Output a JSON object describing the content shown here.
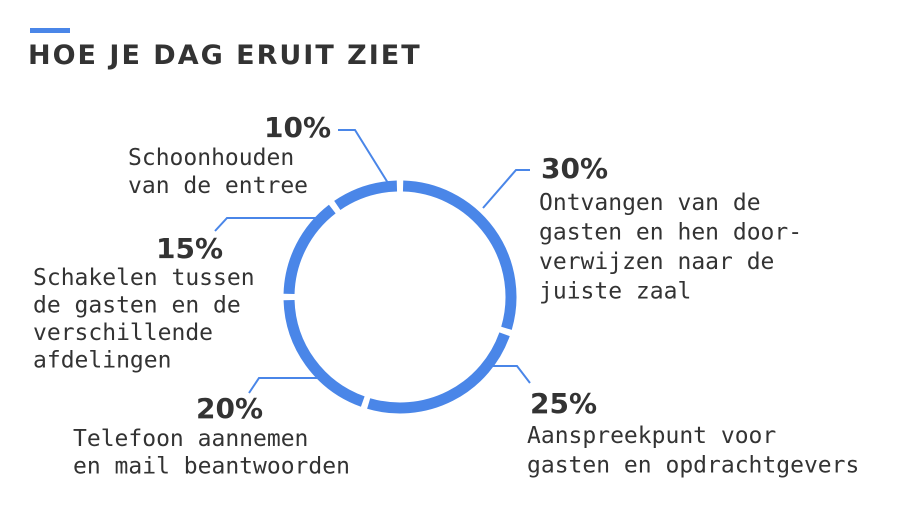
{
  "title": "HOE JE DAG ERUIT ZIET",
  "colors": {
    "accent": "#4a86e8",
    "text": "#333333"
  },
  "chart_data": {
    "type": "pie",
    "style": "donut-ring",
    "slices": [
      {
        "value": 30,
        "label": "30%",
        "description": [
          "Ontvangen van de",
          "gasten en hen door-",
          "verwijzen naar de",
          "juiste zaal"
        ]
      },
      {
        "value": 25,
        "label": "25%",
        "description": [
          "Aanspreekpunt voor",
          "gasten en opdrachtgevers"
        ]
      },
      {
        "value": 20,
        "label": "20%",
        "description": [
          "Telefoon aannemen",
          "en mail beantwoorden"
        ]
      },
      {
        "value": 15,
        "label": "15%",
        "description": [
          "Schakelen tussen",
          "de gasten en de",
          "verschillende",
          "afdelingen"
        ]
      },
      {
        "value": 10,
        "label": "10%",
        "description": [
          "Schoonhouden",
          "van de entree"
        ]
      }
    ]
  }
}
